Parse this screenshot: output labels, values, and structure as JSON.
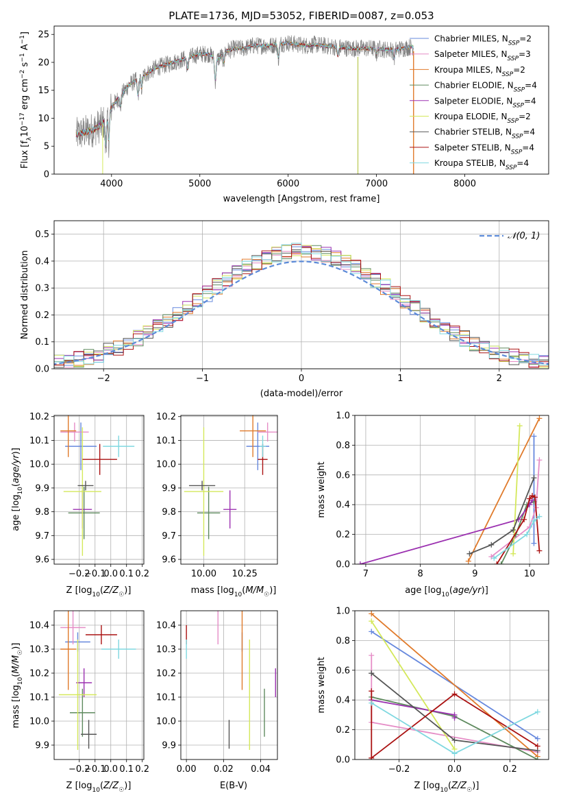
{
  "chart_data": [
    {
      "type": "line",
      "title": "PLATE=1736, MJD=53052, FIBERID=0087, z=0.053",
      "xlabel": "wavelength [Angstrom, rest frame]",
      "ylabel": "Flux [fλ10⁻¹⁷ erg cm⁻² s⁻¹ A⁻¹]",
      "xlim": [
        3350,
        8950
      ],
      "ylim": [
        0,
        26.5
      ],
      "xticks": [
        "4000",
        "5000",
        "6000",
        "7000",
        "8000"
      ],
      "yticks": [
        "0",
        "5",
        "10",
        "15",
        "20",
        "25"
      ],
      "legend_position": "right",
      "data_line_color": "#808080",
      "spectrum_continuum": {
        "x": [
          3600,
          3700,
          3800,
          3900,
          4000,
          4100,
          4200,
          4300,
          4400,
          4500,
          4600,
          4700,
          4800,
          4900,
          5000,
          5100,
          5200,
          5300,
          5400,
          5500,
          5600,
          5700,
          5800,
          5900,
          6000,
          6100,
          6200,
          6300,
          6400,
          6500,
          6600,
          6700,
          6800,
          6900,
          7000,
          7100,
          7200,
          7300,
          7400
        ],
        "y": [
          7,
          7.5,
          8,
          9,
          12,
          14,
          16,
          17,
          18,
          19,
          19.5,
          20,
          20.5,
          21,
          21.5,
          21.5,
          20.5,
          22,
          22.5,
          22.5,
          23,
          23,
          23,
          23.3,
          23.5,
          23.2,
          23,
          23.2,
          23,
          22.8,
          22.7,
          22.5,
          22.5,
          22.5,
          22.5,
          22.3,
          22.3,
          22.5,
          22.8
        ]
      },
      "series": [
        {
          "name": "Chabrier MILES, N_SSP=2",
          "color": "#6688dd"
        },
        {
          "name": "Salpeter MILES, N_SSP=3",
          "color": "#e58cc6"
        },
        {
          "name": "Kroupa MILES, N_SSP=2",
          "color": "#e07a2a"
        },
        {
          "name": "Chabrier ELODIE, N_SSP=4",
          "color": "#5e8a5e"
        },
        {
          "name": "Salpeter ELODIE, N_SSP=4",
          "color": "#9b30b0"
        },
        {
          "name": "Kroupa ELODIE, N_SSP=2",
          "color": "#d4e85a"
        },
        {
          "name": "Chabrier STELIB, N_SSP=4",
          "color": "#555555"
        },
        {
          "name": "Salpeter STELIB, N_SSP=4",
          "color": "#aa1111"
        },
        {
          "name": "Kroupa STELIB, N_SSP=4",
          "color": "#7fd8e0"
        }
      ],
      "legend_labels": [
        {
          "base": "Chabrier MILES, N",
          "sub": "SSP",
          "tail": "=2"
        },
        {
          "base": "Salpeter MILES, N",
          "sub": "SSP",
          "tail": "=3"
        },
        {
          "base": "Kroupa MILES, N",
          "sub": "SSP",
          "tail": "=2"
        },
        {
          "base": "Chabrier ELODIE, N",
          "sub": "SSP",
          "tail": "=4"
        },
        {
          "base": "Salpeter ELODIE, N",
          "sub": "SSP",
          "tail": "=4"
        },
        {
          "base": "Kroupa ELODIE, N",
          "sub": "SSP",
          "tail": "=2"
        },
        {
          "base": "Chabrier STELIB, N",
          "sub": "SSP",
          "tail": "=4"
        },
        {
          "base": "Salpeter STELIB, N",
          "sub": "SSP",
          "tail": "=4"
        },
        {
          "base": "Kroupa STELIB, N",
          "sub": "SSP",
          "tail": "=4"
        }
      ]
    },
    {
      "type": "histogram",
      "xlabel": "(data-model)/error",
      "ylabel": "Normed distribution",
      "xlim": [
        -2.5,
        2.5
      ],
      "ylim": [
        0,
        0.55
      ],
      "xticks": [
        "−2",
        "−1",
        "0",
        "1",
        "2"
      ],
      "yticks": [
        "0.0",
        "0.1",
        "0.2",
        "0.3",
        "0.4",
        "0.5"
      ],
      "grid": true,
      "bin_width": 0.1,
      "legend": "𝒩(0, 1)",
      "reference_curve": "normal(0,1)",
      "reference_color": "#5b8ad8",
      "series_colors": [
        "#6688dd",
        "#e58cc6",
        "#e07a2a",
        "#5e8a5e",
        "#9b30b0",
        "#d4e85a",
        "#555555",
        "#aa1111",
        "#7fd8e0"
      ]
    },
    {
      "type": "scatter",
      "subtype": "errorbar",
      "xlabel": "Z [log10(Z/Z☉)]",
      "ylabel": "age [log10(age/yr)]",
      "xlim": [
        -0.36,
        0.21
      ],
      "ylim": [
        9.58,
        10.205
      ],
      "xticks": [
        "−0.2",
        "−0.1",
        "0.0",
        "0.1",
        "0.2"
      ],
      "yticks": [
        "9.6",
        "9.7",
        "9.8",
        "9.9",
        "10.0",
        "10.1",
        "10.2"
      ],
      "grid": true,
      "points": [
        {
          "color": "#6688dd",
          "x": -0.19,
          "xerr": 0.1,
          "y": 10.075,
          "yerr": 0.1
        },
        {
          "color": "#e58cc6",
          "x": -0.23,
          "xerr": 0.09,
          "y": 10.135,
          "yerr": 0.04
        },
        {
          "color": "#e07a2a",
          "x": -0.27,
          "xerr": 0.05,
          "y": 10.14,
          "yerr": 0.11
        },
        {
          "color": "#5e8a5e",
          "x": -0.17,
          "xerr": 0.1,
          "y": 9.795,
          "yerr": 0.11
        },
        {
          "color": "#9b30b0",
          "x": -0.18,
          "xerr": 0.06,
          "y": 9.81,
          "yerr": 0.08
        },
        {
          "color": "#d4e85a",
          "x": -0.18,
          "xerr": 0.12,
          "y": 9.885,
          "yerr": 0.27
        },
        {
          "color": "#555555",
          "x": -0.16,
          "xerr": 0.05,
          "y": 9.91,
          "yerr": 0.02
        },
        {
          "color": "#aa1111",
          "x": -0.07,
          "xerr": 0.11,
          "y": 10.02,
          "yerr": 0.065
        },
        {
          "color": "#7fd8e0",
          "x": 0.05,
          "xerr": 0.1,
          "y": 10.075,
          "yerr": 0.045
        }
      ]
    },
    {
      "type": "scatter",
      "subtype": "errorbar",
      "xlabel": "mass [log10(M/M☉)]",
      "ylabel": "",
      "xlim": [
        9.86,
        10.45
      ],
      "ylim": [
        9.58,
        10.205
      ],
      "xticks": [
        "10.00",
        "10.25"
      ],
      "yticks": [
        "9.6",
        "9.7",
        "9.8",
        "9.9",
        "10.0",
        "10.1",
        "10.2"
      ],
      "grid": true,
      "points": [
        {
          "color": "#6688dd",
          "x": 10.33,
          "xerr": 0.07,
          "y": 10.075,
          "yerr": 0.1
        },
        {
          "color": "#e58cc6",
          "x": 10.39,
          "xerr": 0.06,
          "y": 10.135,
          "yerr": 0.04
        },
        {
          "color": "#e07a2a",
          "x": 10.3,
          "xerr": 0.08,
          "y": 10.14,
          "yerr": 0.11
        },
        {
          "color": "#5e8a5e",
          "x": 10.03,
          "xerr": 0.07,
          "y": 9.795,
          "yerr": 0.11
        },
        {
          "color": "#9b30b0",
          "x": 10.16,
          "xerr": 0.04,
          "y": 9.81,
          "yerr": 0.08
        },
        {
          "color": "#d4e85a",
          "x": 10.0,
          "xerr": 0.12,
          "y": 9.885,
          "yerr": 0.27
        },
        {
          "color": "#555555",
          "x": 9.99,
          "xerr": 0.08,
          "y": 9.91,
          "yerr": 0.02
        },
        {
          "color": "#aa1111",
          "x": 10.36,
          "xerr": 0.03,
          "y": 10.02,
          "yerr": 0.065
        },
        {
          "color": "#7fd8e0",
          "x": 10.36,
          "xerr": 0.02,
          "y": 10.075,
          "yerr": 0.045
        }
      ]
    },
    {
      "type": "line",
      "xlabel": "age [log10(age/yr)]",
      "ylabel": "mass weight",
      "xlim": [
        6.8,
        10.35
      ],
      "ylim": [
        0,
        1
      ],
      "xticks": [
        "7",
        "8",
        "9",
        "10"
      ],
      "yticks": [
        "0.0",
        "0.2",
        "0.4",
        "0.6",
        "0.8",
        "1.0"
      ],
      "grid": true,
      "series": [
        {
          "color": "#6688dd",
          "x": [
            10.08,
            10.08
          ],
          "y": [
            0.14,
            0.86
          ]
        },
        {
          "color": "#e58cc6",
          "x": [
            9.3,
            10.0,
            10.12,
            10.18
          ],
          "y": [
            0.05,
            0.25,
            0.38,
            0.7
          ]
        },
        {
          "color": "#e07a2a",
          "x": [
            8.88,
            10.18
          ],
          "y": [
            0.02,
            0.98
          ]
        },
        {
          "color": "#5e8a5e",
          "x": [
            9.48,
            9.75,
            9.95,
            10.08
          ],
          "y": [
            0.0,
            0.2,
            0.4,
            0.42
          ]
        },
        {
          "color": "#9b30b0",
          "x": [
            6.9,
            9.8,
            10.0,
            10.05
          ],
          "y": [
            0.0,
            0.3,
            0.4,
            0.43
          ]
        },
        {
          "color": "#d4e85a",
          "x": [
            9.7,
            9.82
          ],
          "y": [
            0.07,
            0.93
          ]
        },
        {
          "color": "#555555",
          "x": [
            8.9,
            9.3,
            9.7,
            10.08
          ],
          "y": [
            0.07,
            0.13,
            0.23,
            0.58
          ]
        },
        {
          "color": "#aa1111",
          "x": [
            9.4,
            9.9,
            10.0,
            10.05,
            10.1,
            10.18
          ],
          "y": [
            0.0,
            0.3,
            0.44,
            0.46,
            0.45,
            0.09
          ]
        },
        {
          "color": "#7fd8e0",
          "x": [
            9.35,
            9.95,
            10.08,
            10.18
          ],
          "y": [
            0.04,
            0.2,
            0.29,
            0.32
          ]
        }
      ]
    },
    {
      "type": "scatter",
      "subtype": "errorbar",
      "xlabel": "Z [log10(Z/Z☉)]",
      "ylabel": "mass [log10(M/M☉)]",
      "xlim": [
        -0.36,
        0.21
      ],
      "ylim": [
        9.84,
        10.46
      ],
      "xticks": [
        "−0.2",
        "−0.1",
        "0.0",
        "0.1",
        "0.2"
      ],
      "yticks": [
        "9.9",
        "10.0",
        "10.1",
        "10.2",
        "10.3",
        "10.4"
      ],
      "grid": true,
      "points": [
        {
          "color": "#6688dd",
          "x": -0.21,
          "xerr": 0.08,
          "y": 10.33,
          "yerr": 0.04
        },
        {
          "color": "#e58cc6",
          "x": -0.24,
          "xerr": 0.08,
          "y": 10.39,
          "yerr": 0.07
        },
        {
          "color": "#e07a2a",
          "x": -0.27,
          "xerr": 0.05,
          "y": 10.3,
          "yerr": 0.17
        },
        {
          "color": "#5e8a5e",
          "x": -0.18,
          "xerr": 0.08,
          "y": 10.035,
          "yerr": 0.1
        },
        {
          "color": "#9b30b0",
          "x": -0.17,
          "xerr": 0.05,
          "y": 10.16,
          "yerr": 0.06
        },
        {
          "color": "#d4e85a",
          "x": -0.21,
          "xerr": 0.12,
          "y": 10.11,
          "yerr": 0.23
        },
        {
          "color": "#555555",
          "x": -0.14,
          "xerr": 0.05,
          "y": 9.945,
          "yerr": 0.06
        },
        {
          "color": "#aa1111",
          "x": -0.06,
          "xerr": 0.1,
          "y": 10.36,
          "yerr": 0.04
        },
        {
          "color": "#7fd8e0",
          "x": 0.05,
          "xerr": 0.11,
          "y": 10.3,
          "yerr": 0.04
        }
      ]
    },
    {
      "type": "scatter",
      "subtype": "errorbar",
      "xlabel": "E(B-V)",
      "ylabel": "",
      "xlim": [
        -0.003,
        0.049
      ],
      "ylim": [
        9.84,
        10.46
      ],
      "xticks": [
        "0.00",
        "0.02",
        "0.04"
      ],
      "yticks": [
        "9.9",
        "10.0",
        "10.1",
        "10.2",
        "10.3",
        "10.4"
      ],
      "grid": true,
      "points": [
        {
          "color": "#6688dd",
          "x": 0.03,
          "xerr": 0,
          "y": 10.33,
          "yerr": 0.04
        },
        {
          "color": "#e58cc6",
          "x": 0.017,
          "xerr": 0,
          "y": 10.39,
          "yerr": 0.07
        },
        {
          "color": "#e07a2a",
          "x": 0.03,
          "xerr": 0,
          "y": 10.3,
          "yerr": 0.17
        },
        {
          "color": "#5e8a5e",
          "x": 0.042,
          "xerr": 0,
          "y": 10.035,
          "yerr": 0.1
        },
        {
          "color": "#9b30b0",
          "x": 0.048,
          "xerr": 0,
          "y": 10.16,
          "yerr": 0.06
        },
        {
          "color": "#d4e85a",
          "x": 0.034,
          "xerr": 0,
          "y": 10.11,
          "yerr": 0.23
        },
        {
          "color": "#555555",
          "x": 0.023,
          "xerr": 0,
          "y": 9.945,
          "yerr": 0.06
        },
        {
          "color": "#aa1111",
          "x": 0.0,
          "xerr": 0,
          "y": 10.36,
          "yerr": 0.04
        },
        {
          "color": "#7fd8e0",
          "x": 0.0,
          "xerr": 0,
          "y": 10.3,
          "yerr": 0.04
        }
      ]
    },
    {
      "type": "line",
      "xlabel": "Z [log10(Z/Z☉)]",
      "ylabel": "mass weight",
      "xlim": [
        -0.36,
        0.34
      ],
      "ylim": [
        0,
        1
      ],
      "xticks": [
        "−0.2",
        "0.0",
        "0.2"
      ],
      "yticks": [
        "0.0",
        "0.2",
        "0.4",
        "0.6",
        "0.8",
        "1.0"
      ],
      "grid": true,
      "series": [
        {
          "color": "#6688dd",
          "x": [
            -0.3,
            0.3
          ],
          "y": [
            0.86,
            0.14
          ]
        },
        {
          "color": "#e58cc6",
          "x": [
            -0.3,
            -0.3,
            0.3
          ],
          "y": [
            0.7,
            0.25,
            0.05
          ]
        },
        {
          "color": "#e07a2a",
          "x": [
            -0.3,
            0.3
          ],
          "y": [
            0.98,
            0.02
          ]
        },
        {
          "color": "#5e8a5e",
          "x": [
            -0.3,
            0.0,
            0.3
          ],
          "y": [
            0.42,
            0.29,
            0.0
          ]
        },
        {
          "color": "#9b30b0",
          "x": [
            -0.3,
            0.0,
            0.0
          ],
          "y": [
            0.4,
            0.3,
            0.28
          ]
        },
        {
          "color": "#d4e85a",
          "x": [
            -0.3,
            0.0
          ],
          "y": [
            0.93,
            0.07
          ]
        },
        {
          "color": "#555555",
          "x": [
            -0.3,
            -0.3,
            0.0,
            0.3
          ],
          "y": [
            0.58,
            0.58,
            0.13,
            0.06
          ]
        },
        {
          "color": "#aa1111",
          "x": [
            -0.3,
            -0.3,
            0.0,
            0.3
          ],
          "y": [
            0.46,
            0.01,
            0.44,
            0.09
          ]
        },
        {
          "color": "#7fd8e0",
          "x": [
            -0.3,
            0.0,
            0.3
          ],
          "y": [
            0.38,
            0.04,
            0.32
          ]
        }
      ]
    }
  ]
}
